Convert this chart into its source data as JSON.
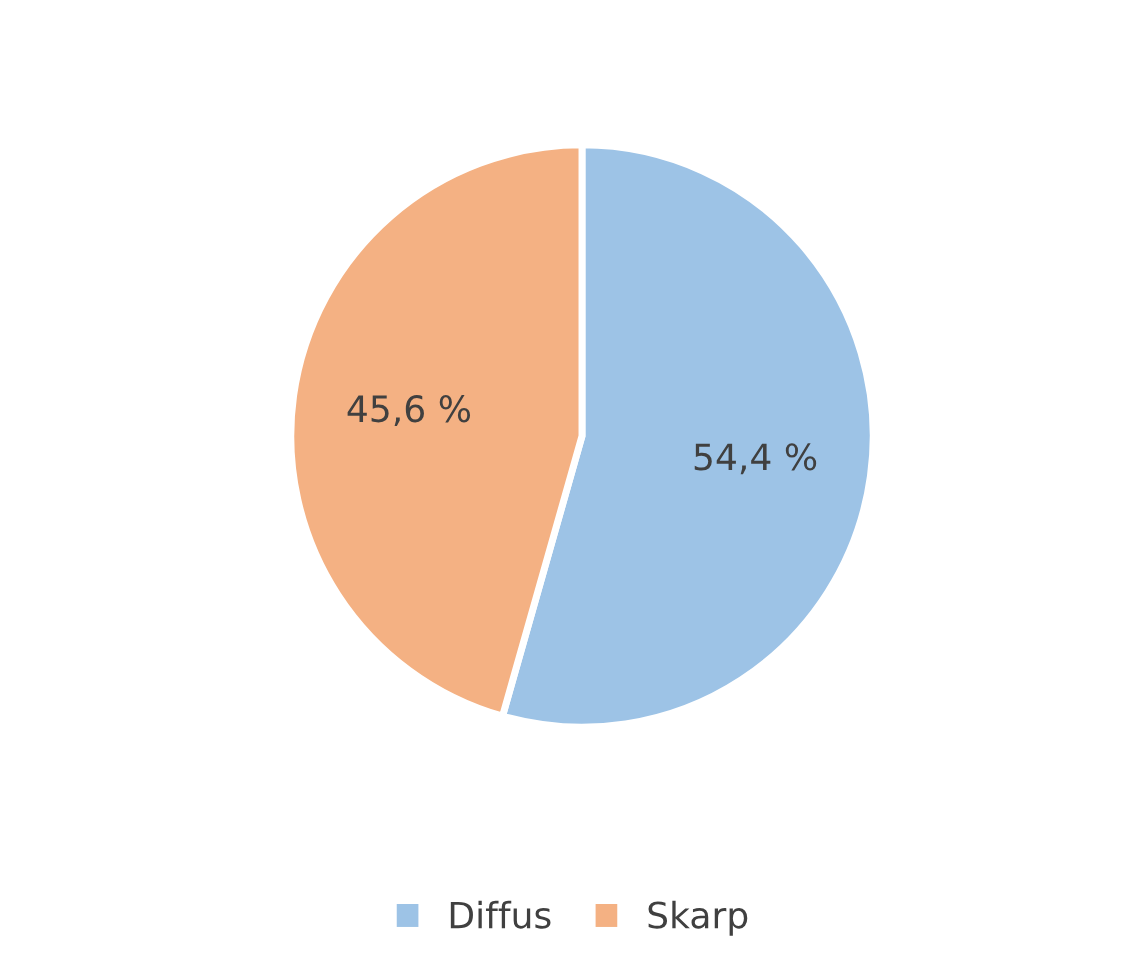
{
  "chart_data": {
    "type": "pie",
    "categories": [
      "Diffus",
      "Skarp"
    ],
    "values": [
      54.4,
      45.6
    ],
    "colors": [
      "#9dc3e6",
      "#f4b183"
    ],
    "value_labels": [
      "54,4 %",
      "45,6 %"
    ],
    "legend": "bottom"
  }
}
